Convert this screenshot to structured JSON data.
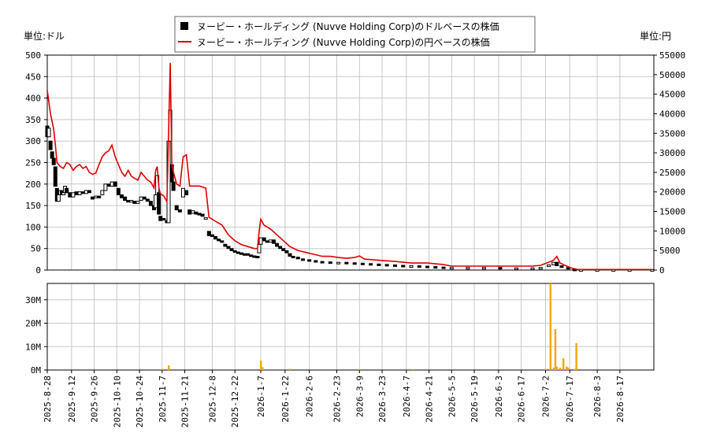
{
  "chart_data": {
    "type": "line",
    "units": {
      "left": "単位:ドル",
      "right": "単位:円"
    },
    "legend": {
      "placement": "top-center",
      "entries": [
        {
          "label": "ヌービー・ホールディング (Nuvve Holding Corp)のドルベースの株価",
          "color": "#000000",
          "marker": "square"
        },
        {
          "label": "ヌービー・ホールディング (Nuvve Holding Corp)の円ベースの株価",
          "color": "#dd0000",
          "marker": "line"
        }
      ]
    },
    "price_axis": {
      "left_ylim": [
        0,
        500
      ],
      "left_ticks": [
        "0",
        "50",
        "100",
        "150",
        "200",
        "250",
        "300",
        "350",
        "400",
        "450",
        "500"
      ],
      "right_ylim": [
        0,
        55000
      ],
      "right_ticks": [
        "0",
        "5000",
        "10000",
        "15000",
        "20000",
        "25000",
        "30000",
        "35000",
        "40000",
        "45000",
        "50000",
        "55000"
      ],
      "grid": true
    },
    "volume_axis": {
      "ylim": [
        0,
        37000000
      ],
      "ticks": [
        "0M",
        "10M",
        "20M",
        "30M"
      ],
      "grid": true,
      "color": "#f0a800"
    },
    "x_ticks": [
      "2025-8-28",
      "2025-9-12",
      "2025-9-26",
      "2025-10-10",
      "2025-10-24",
      "2025-11-7",
      "2025-11-21",
      "2025-12-8",
      "2025-12-22",
      "2026-1-7",
      "2026-1-22",
      "2026-2-6",
      "2026-2-23",
      "2026-3-9",
      "2026-3-23",
      "2026-4-7",
      "2026-4-21",
      "2026-5-5",
      "2026-5-19",
      "2026-6-3",
      "2026-6-17",
      "2026-7-2",
      "2026-7-17",
      "2026-8-3",
      "2026-8-17"
    ],
    "x_days": [
      0,
      15,
      29,
      43,
      57,
      71,
      85,
      102,
      116,
      132,
      147,
      162,
      179,
      193,
      207,
      222,
      236,
      250,
      264,
      279,
      293,
      308,
      323,
      340,
      354
    ],
    "x_end_day": 375,
    "usd_series": [
      {
        "d": 0,
        "o": 335,
        "c": 310
      },
      {
        "d": 1,
        "o": 310,
        "c": 330
      },
      {
        "d": 2,
        "o": 300,
        "c": 280
      },
      {
        "d": 3,
        "o": 275,
        "c": 260
      },
      {
        "d": 4,
        "o": 260,
        "c": 245
      },
      {
        "d": 5,
        "o": 240,
        "c": 195
      },
      {
        "d": 6,
        "o": 190,
        "c": 160
      },
      {
        "d": 7,
        "o": 160,
        "c": 175
      },
      {
        "d": 8,
        "o": 175,
        "c": 185
      },
      {
        "d": 9,
        "o": 185,
        "c": 175
      },
      {
        "d": 10,
        "o": 175,
        "c": 180
      },
      {
        "d": 11,
        "o": 180,
        "c": 195
      },
      {
        "d": 12,
        "o": 190,
        "c": 180
      },
      {
        "d": 14,
        "o": 180,
        "c": 170
      },
      {
        "d": 16,
        "o": 170,
        "c": 180
      },
      {
        "d": 18,
        "o": 182,
        "c": 175
      },
      {
        "d": 20,
        "o": 175,
        "c": 182
      },
      {
        "d": 22,
        "o": 182,
        "c": 178
      },
      {
        "d": 24,
        "o": 178,
        "c": 185
      },
      {
        "d": 26,
        "o": 185,
        "c": 180
      },
      {
        "d": 28,
        "o": 170,
        "c": 165
      },
      {
        "d": 30,
        "o": 168,
        "c": 172
      },
      {
        "d": 32,
        "o": 172,
        "c": 168
      },
      {
        "d": 34,
        "o": 175,
        "c": 185
      },
      {
        "d": 36,
        "o": 185,
        "c": 200
      },
      {
        "d": 38,
        "o": 200,
        "c": 195
      },
      {
        "d": 40,
        "o": 195,
        "c": 205
      },
      {
        "d": 42,
        "o": 205,
        "c": 195
      },
      {
        "d": 44,
        "o": 190,
        "c": 175
      },
      {
        "d": 46,
        "o": 175,
        "c": 168
      },
      {
        "d": 48,
        "o": 170,
        "c": 162
      },
      {
        "d": 50,
        "o": 162,
        "c": 158
      },
      {
        "d": 52,
        "o": 158,
        "c": 162
      },
      {
        "d": 54,
        "o": 160,
        "c": 155
      },
      {
        "d": 56,
        "o": 155,
        "c": 160
      },
      {
        "d": 58,
        "o": 162,
        "c": 170
      },
      {
        "d": 60,
        "o": 170,
        "c": 165
      },
      {
        "d": 62,
        "o": 165,
        "c": 160
      },
      {
        "d": 64,
        "o": 160,
        "c": 150
      },
      {
        "d": 66,
        "o": 150,
        "c": 140
      },
      {
        "d": 67,
        "o": 145,
        "c": 175
      },
      {
        "d": 68,
        "o": 175,
        "c": 220
      },
      {
        "d": 69,
        "o": 180,
        "c": 130
      },
      {
        "d": 70,
        "o": 125,
        "c": 115
      },
      {
        "d": 72,
        "o": 120,
        "c": 118
      },
      {
        "d": 74,
        "o": 115,
        "c": 110
      },
      {
        "d": 75,
        "o": 110,
        "c": 300
      },
      {
        "d": 76,
        "o": 300,
        "c": 372
      },
      {
        "d": 77,
        "o": 245,
        "c": 205
      },
      {
        "d": 78,
        "o": 205,
        "c": 185
      },
      {
        "d": 80,
        "o": 150,
        "c": 140
      },
      {
        "d": 82,
        "o": 140,
        "c": 135
      },
      {
        "d": 84,
        "o": 170,
        "c": 190
      },
      {
        "d": 86,
        "o": 185,
        "c": 175
      },
      {
        "d": 88,
        "o": 140,
        "c": 130
      },
      {
        "d": 90,
        "o": 132,
        "c": 138
      },
      {
        "d": 92,
        "o": 135,
        "c": 130
      },
      {
        "d": 94,
        "o": 132,
        "c": 128
      },
      {
        "d": 96,
        "o": 130,
        "c": 125
      },
      {
        "d": 98,
        "o": 120,
        "c": 122
      },
      {
        "d": 100,
        "o": 90,
        "c": 80
      },
      {
        "d": 102,
        "o": 82,
        "c": 78
      },
      {
        "d": 104,
        "o": 78,
        "c": 72
      },
      {
        "d": 106,
        "o": 72,
        "c": 68
      },
      {
        "d": 108,
        "o": 68,
        "c": 65
      },
      {
        "d": 110,
        "o": 60,
        "c": 55
      },
      {
        "d": 112,
        "o": 55,
        "c": 50
      },
      {
        "d": 114,
        "o": 50,
        "c": 45
      },
      {
        "d": 116,
        "o": 45,
        "c": 42
      },
      {
        "d": 118,
        "o": 42,
        "c": 40
      },
      {
        "d": 120,
        "o": 40,
        "c": 38
      },
      {
        "d": 122,
        "o": 38,
        "c": 36
      },
      {
        "d": 124,
        "o": 38,
        "c": 35
      },
      {
        "d": 126,
        "o": 35,
        "c": 33
      },
      {
        "d": 128,
        "o": 33,
        "c": 32
      },
      {
        "d": 130,
        "o": 32,
        "c": 30
      },
      {
        "d": 131,
        "o": 40,
        "c": 60
      },
      {
        "d": 132,
        "o": 60,
        "c": 75
      },
      {
        "d": 134,
        "o": 75,
        "c": 68
      },
      {
        "d": 136,
        "o": 68,
        "c": 65
      },
      {
        "d": 138,
        "o": 65,
        "c": 70
      },
      {
        "d": 140,
        "o": 70,
        "c": 62
      },
      {
        "d": 142,
        "o": 62,
        "c": 55
      },
      {
        "d": 144,
        "o": 55,
        "c": 50
      },
      {
        "d": 146,
        "o": 50,
        "c": 45
      },
      {
        "d": 148,
        "o": 45,
        "c": 40
      },
      {
        "d": 150,
        "o": 38,
        "c": 32
      },
      {
        "d": 152,
        "o": 32,
        "c": 30
      },
      {
        "d": 155,
        "o": 30,
        "c": 26
      },
      {
        "d": 158,
        "o": 26,
        "c": 24
      },
      {
        "d": 162,
        "o": 24,
        "c": 22
      },
      {
        "d": 166,
        "o": 22,
        "c": 20
      },
      {
        "d": 170,
        "o": 20,
        "c": 19
      },
      {
        "d": 175,
        "o": 19,
        "c": 18
      },
      {
        "d": 180,
        "o": 18,
        "c": 18
      },
      {
        "d": 185,
        "o": 18,
        "c": 17
      },
      {
        "d": 190,
        "o": 17,
        "c": 16
      },
      {
        "d": 195,
        "o": 16,
        "c": 15
      },
      {
        "d": 200,
        "o": 15,
        "c": 14
      },
      {
        "d": 205,
        "o": 14,
        "c": 13
      },
      {
        "d": 210,
        "o": 13,
        "c": 12
      },
      {
        "d": 215,
        "o": 12,
        "c": 11
      },
      {
        "d": 220,
        "o": 11,
        "c": 10
      },
      {
        "d": 225,
        "o": 10,
        "c": 10
      },
      {
        "d": 230,
        "o": 10,
        "c": 9
      },
      {
        "d": 235,
        "o": 9,
        "c": 8
      },
      {
        "d": 240,
        "o": 8,
        "c": 7
      },
      {
        "d": 245,
        "o": 7,
        "c": 6
      },
      {
        "d": 250,
        "o": 6,
        "c": 6
      },
      {
        "d": 260,
        "o": 6,
        "c": 6
      },
      {
        "d": 270,
        "o": 6,
        "c": 6
      },
      {
        "d": 280,
        "o": 6,
        "c": 5
      },
      {
        "d": 290,
        "o": 5,
        "c": 5
      },
      {
        "d": 300,
        "o": 5,
        "c": 5
      },
      {
        "d": 305,
        "o": 5,
        "c": 6
      },
      {
        "d": 310,
        "o": 8,
        "c": 12
      },
      {
        "d": 313,
        "o": 12,
        "c": 18
      },
      {
        "d": 315,
        "o": 18,
        "c": 10
      },
      {
        "d": 318,
        "o": 10,
        "c": 6
      },
      {
        "d": 322,
        "o": 6,
        "c": 3
      },
      {
        "d": 326,
        "o": 2,
        "c": 1
      },
      {
        "d": 330,
        "o": 1,
        "c": 1
      },
      {
        "d": 340,
        "o": 1,
        "c": 1
      },
      {
        "d": 350,
        "o": 1,
        "c": 1
      },
      {
        "d": 360,
        "o": 1,
        "c": 1
      },
      {
        "d": 374,
        "o": 1,
        "c": 1
      }
    ],
    "jpy_series": [
      {
        "d": 0,
        "v": 46000
      },
      {
        "d": 2,
        "v": 40000
      },
      {
        "d": 4,
        "v": 36000
      },
      {
        "d": 5,
        "v": 32000
      },
      {
        "d": 6,
        "v": 27500
      },
      {
        "d": 8,
        "v": 26500
      },
      {
        "d": 10,
        "v": 26000
      },
      {
        "d": 12,
        "v": 27500
      },
      {
        "d": 14,
        "v": 27000
      },
      {
        "d": 16,
        "v": 25500
      },
      {
        "d": 18,
        "v": 26500
      },
      {
        "d": 20,
        "v": 27000
      },
      {
        "d": 22,
        "v": 26000
      },
      {
        "d": 24,
        "v": 26500
      },
      {
        "d": 26,
        "v": 25000
      },
      {
        "d": 28,
        "v": 24500
      },
      {
        "d": 30,
        "v": 24800
      },
      {
        "d": 32,
        "v": 27000
      },
      {
        "d": 34,
        "v": 29000
      },
      {
        "d": 36,
        "v": 30000
      },
      {
        "d": 38,
        "v": 30500
      },
      {
        "d": 40,
        "v": 32000
      },
      {
        "d": 42,
        "v": 29000
      },
      {
        "d": 44,
        "v": 27000
      },
      {
        "d": 46,
        "v": 25000
      },
      {
        "d": 48,
        "v": 24000
      },
      {
        "d": 50,
        "v": 25500
      },
      {
        "d": 52,
        "v": 24000
      },
      {
        "d": 54,
        "v": 23500
      },
      {
        "d": 56,
        "v": 23000
      },
      {
        "d": 58,
        "v": 25000
      },
      {
        "d": 60,
        "v": 24000
      },
      {
        "d": 62,
        "v": 23000
      },
      {
        "d": 64,
        "v": 22500
      },
      {
        "d": 66,
        "v": 21000
      },
      {
        "d": 67,
        "v": 25500
      },
      {
        "d": 68,
        "v": 26500
      },
      {
        "d": 69,
        "v": 21000
      },
      {
        "d": 70,
        "v": 19500
      },
      {
        "d": 72,
        "v": 19000
      },
      {
        "d": 74,
        "v": 17500
      },
      {
        "d": 75,
        "v": 35000
      },
      {
        "d": 76,
        "v": 53000
      },
      {
        "d": 77,
        "v": 27000
      },
      {
        "d": 78,
        "v": 25000
      },
      {
        "d": 80,
        "v": 22000
      },
      {
        "d": 82,
        "v": 21500
      },
      {
        "d": 84,
        "v": 29000
      },
      {
        "d": 86,
        "v": 29500
      },
      {
        "d": 88,
        "v": 21500
      },
      {
        "d": 90,
        "v": 21500
      },
      {
        "d": 94,
        "v": 21500
      },
      {
        "d": 98,
        "v": 21000
      },
      {
        "d": 100,
        "v": 13500
      },
      {
        "d": 104,
        "v": 12500
      },
      {
        "d": 108,
        "v": 11500
      },
      {
        "d": 112,
        "v": 9000
      },
      {
        "d": 116,
        "v": 7500
      },
      {
        "d": 120,
        "v": 6500
      },
      {
        "d": 124,
        "v": 6000
      },
      {
        "d": 128,
        "v": 5500
      },
      {
        "d": 130,
        "v": 5500
      },
      {
        "d": 131,
        "v": 10000
      },
      {
        "d": 132,
        "v": 13000
      },
      {
        "d": 134,
        "v": 11500
      },
      {
        "d": 138,
        "v": 10500
      },
      {
        "d": 142,
        "v": 9000
      },
      {
        "d": 146,
        "v": 7500
      },
      {
        "d": 150,
        "v": 6000
      },
      {
        "d": 155,
        "v": 5000
      },
      {
        "d": 160,
        "v": 4500
      },
      {
        "d": 165,
        "v": 4000
      },
      {
        "d": 170,
        "v": 3500
      },
      {
        "d": 175,
        "v": 3500
      },
      {
        "d": 180,
        "v": 3200
      },
      {
        "d": 185,
        "v": 3000
      },
      {
        "d": 190,
        "v": 3200
      },
      {
        "d": 193,
        "v": 3600
      },
      {
        "d": 196,
        "v": 2800
      },
      {
        "d": 205,
        "v": 2500
      },
      {
        "d": 215,
        "v": 2200
      },
      {
        "d": 225,
        "v": 1800
      },
      {
        "d": 235,
        "v": 1800
      },
      {
        "d": 245,
        "v": 1400
      },
      {
        "d": 250,
        "v": 1000
      },
      {
        "d": 265,
        "v": 1000
      },
      {
        "d": 280,
        "v": 1000
      },
      {
        "d": 300,
        "v": 1000
      },
      {
        "d": 305,
        "v": 1200
      },
      {
        "d": 310,
        "v": 2000
      },
      {
        "d": 313,
        "v": 2500
      },
      {
        "d": 315,
        "v": 3500
      },
      {
        "d": 317,
        "v": 1800
      },
      {
        "d": 320,
        "v": 1200
      },
      {
        "d": 324,
        "v": 500
      },
      {
        "d": 328,
        "v": 150
      },
      {
        "d": 340,
        "v": 150
      },
      {
        "d": 360,
        "v": 150
      },
      {
        "d": 374,
        "v": 150
      }
    ],
    "volume_series": [
      {
        "d": 71,
        "v": 500000
      },
      {
        "d": 75,
        "v": 2000000
      },
      {
        "d": 132,
        "v": 4000000
      },
      {
        "d": 133,
        "v": 1200000
      },
      {
        "d": 150,
        "v": 500000
      },
      {
        "d": 193,
        "v": 400000
      },
      {
        "d": 226,
        "v": 300000
      },
      {
        "d": 308,
        "v": 500000
      },
      {
        "d": 311,
        "v": 37000000
      },
      {
        "d": 313,
        "v": 1000000
      },
      {
        "d": 314,
        "v": 17500000
      },
      {
        "d": 315,
        "v": 1500000
      },
      {
        "d": 317,
        "v": 1000000
      },
      {
        "d": 319,
        "v": 5000000
      },
      {
        "d": 321,
        "v": 1500000
      },
      {
        "d": 322,
        "v": 1000000
      },
      {
        "d": 326,
        "v": 500000
      },
      {
        "d": 327,
        "v": 11500000
      }
    ]
  }
}
